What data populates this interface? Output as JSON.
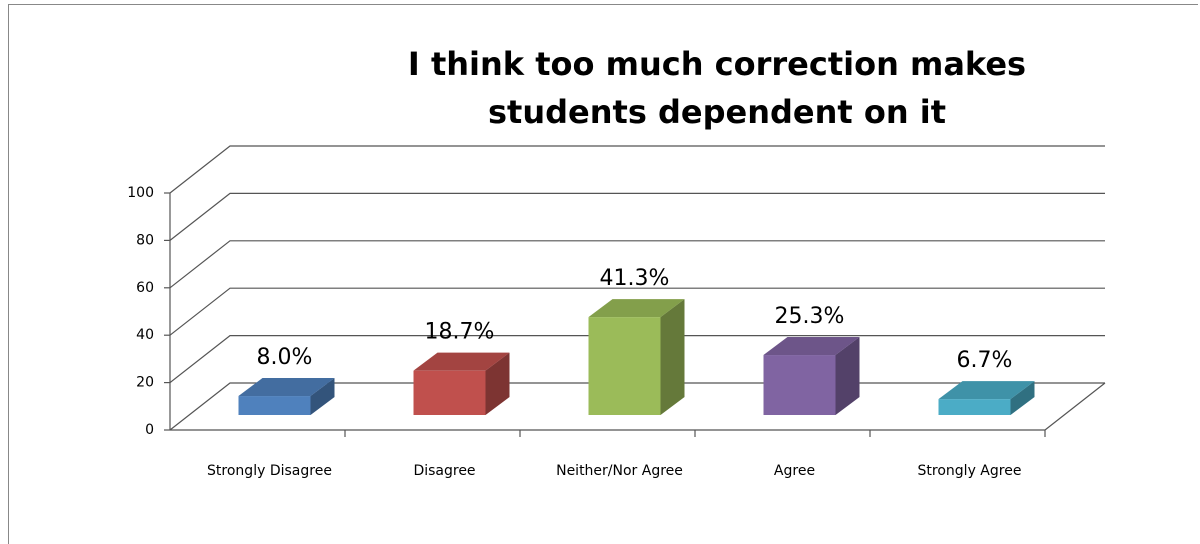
{
  "chart_data": {
    "type": "bar3d",
    "title": "I think too much correction makes students dependent on it",
    "categories": [
      "Strongly Disagree",
      "Disagree",
      "Neither/Nor Agree",
      "Agree",
      "Strongly Agree"
    ],
    "values": [
      8.0,
      18.7,
      41.3,
      25.3,
      6.7
    ],
    "value_labels": [
      "8.0%",
      "18.7%",
      "41.3%",
      "25.3%",
      "6.7%"
    ],
    "colors": [
      "#4f81bd",
      "#c0504d",
      "#9bbb59",
      "#8064a2",
      "#4bacc6"
    ],
    "ylim": [
      0,
      100
    ],
    "yticks": [
      0,
      20,
      40,
      60,
      80,
      100
    ],
    "grid": true
  }
}
